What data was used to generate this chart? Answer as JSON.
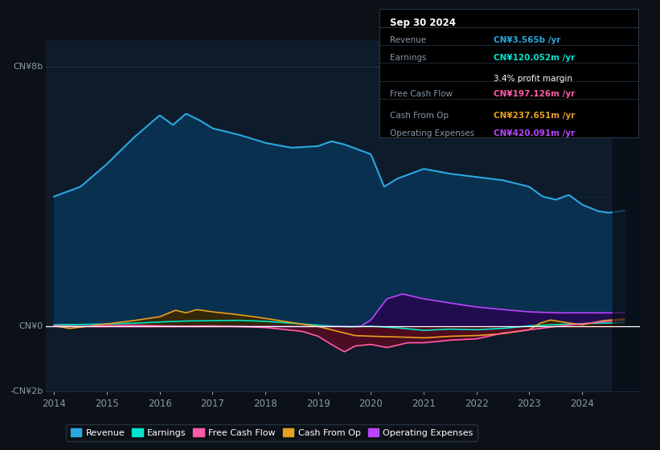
{
  "bg_color": "#0c1117",
  "plot_bg_color": "#0d1b2a",
  "ylabel_top": "CN¥8b",
  "ylabel_bottom": "-CN¥2b",
  "zero_label": "CN¥0",
  "revenue_color": "#29a8e0",
  "earnings_color": "#00e5cc",
  "fcf_color": "#ff5ca8",
  "cashop_color": "#e8a020",
  "opex_color": "#bb44ff",
  "revenue_fill": "#0a3050",
  "earnings_fill": "#0d3535",
  "fcf_fill_neg": "#5a0a22",
  "cashop_fill_pos": "#3a2800",
  "cashop_fill_neg": "#3a1000",
  "opex_fill": "#250850",
  "info_box": {
    "title": "Sep 30 2024",
    "rows": [
      {
        "label": "Revenue",
        "value": "CN¥3.565b /yr",
        "value_color": "#29a8e0"
      },
      {
        "label": "Earnings",
        "value": "CN¥120.052m /yr",
        "value_color": "#00e5cc"
      },
      {
        "label": "",
        "value": "3.4% profit margin",
        "value_color": "#ffffff"
      },
      {
        "label": "Free Cash Flow",
        "value": "CN¥197.126m /yr",
        "value_color": "#ff5ca8"
      },
      {
        "label": "Cash From Op",
        "value": "CN¥237.651m /yr",
        "value_color": "#e8a020"
      },
      {
        "label": "Operating Expenses",
        "value": "CN¥420.091m /yr",
        "value_color": "#bb44ff"
      }
    ]
  },
  "legend_items": [
    {
      "label": "Revenue",
      "color": "#29a8e0"
    },
    {
      "label": "Earnings",
      "color": "#00e5cc"
    },
    {
      "label": "Free Cash Flow",
      "color": "#ff5ca8"
    },
    {
      "label": "Cash From Op",
      "color": "#e8a020"
    },
    {
      "label": "Operating Expenses",
      "color": "#bb44ff"
    }
  ]
}
